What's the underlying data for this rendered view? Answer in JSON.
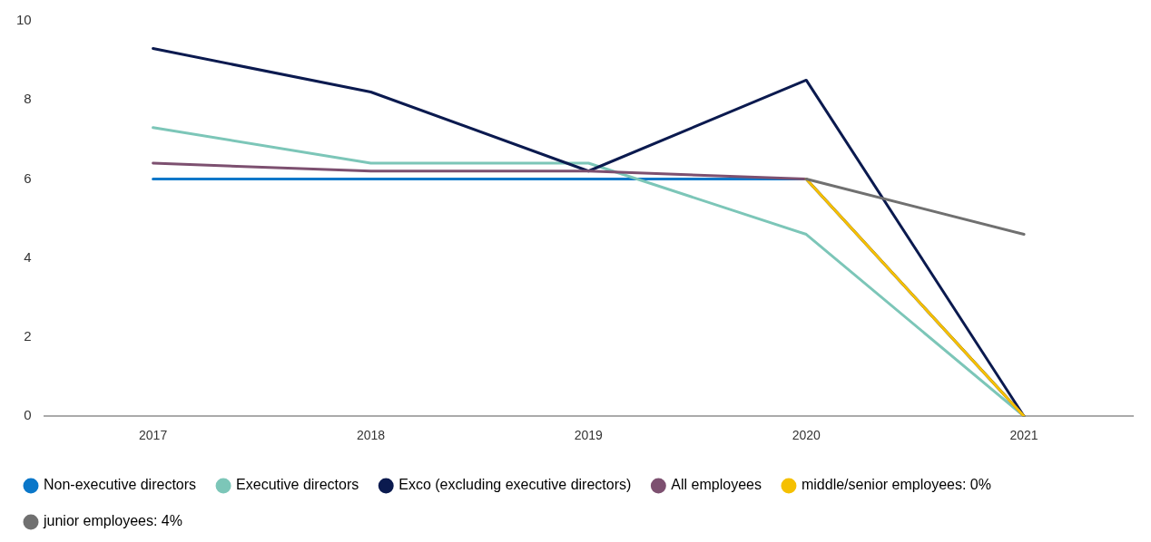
{
  "chart_data": {
    "type": "line",
    "categories": [
      "2017",
      "2018",
      "2019",
      "2020",
      "2021"
    ],
    "ylim": [
      0,
      10
    ],
    "yticks": [
      0,
      2,
      4,
      6,
      8,
      10
    ],
    "grid": false,
    "legend": "bottom",
    "marker": "none",
    "line_style": "solid",
    "series": [
      {
        "name": "Non-executive directors",
        "color": "#0a77c9",
        "values": [
          6.0,
          6.0,
          6.0,
          6.0,
          0
        ]
      },
      {
        "name": "Executive directors",
        "color": "#7cc6b8",
        "values": [
          7.3,
          6.4,
          6.4,
          4.6,
          0
        ]
      },
      {
        "name": "Exco (excluding executive directors)",
        "color": "#0b1a4f",
        "values": [
          9.3,
          8.2,
          6.2,
          8.5,
          0
        ]
      },
      {
        "name": "All employees",
        "color": "#7d5070",
        "values": [
          6.4,
          6.2,
          6.2,
          6.0,
          0
        ]
      },
      {
        "name": "middle/senior employees: 0%",
        "color": "#f5c000",
        "values": [
          null,
          null,
          null,
          6.0,
          0
        ]
      },
      {
        "name": "junior employees: 4%",
        "color": "#707070",
        "values": [
          null,
          null,
          null,
          6.0,
          4.6
        ]
      }
    ]
  }
}
